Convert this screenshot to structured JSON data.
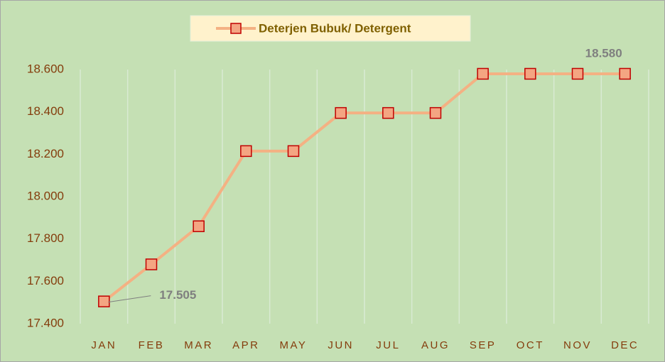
{
  "chart_data": {
    "type": "line",
    "categories": [
      "JAN",
      "FEB",
      "MAR",
      "APR",
      "MAY",
      "JUN",
      "JUL",
      "AUG",
      "SEP",
      "OCT",
      "NOV",
      "DEC"
    ],
    "series": [
      {
        "name": "Deterjen Bubuk/ Detergent",
        "color": "#f4b183",
        "marker_color": "#f4a582",
        "marker_edge": "#c00000",
        "values": [
          17505,
          17680,
          17860,
          18215,
          18215,
          18395,
          18395,
          18395,
          18580,
          18580,
          18580,
          18580
        ],
        "value_labels": [
          "17.505",
          null,
          null,
          null,
          null,
          null,
          null,
          null,
          null,
          null,
          null,
          "18.580"
        ]
      }
    ],
    "ylim": [
      17400,
      18600
    ],
    "yticks": [
      {
        "value": 17400,
        "label": "17.400"
      },
      {
        "value": 17600,
        "label": "17.600"
      },
      {
        "value": 17800,
        "label": "17.800"
      },
      {
        "value": 18000,
        "label": "18.000"
      },
      {
        "value": 18200,
        "label": "18.200"
      },
      {
        "value": 18400,
        "label": "18.400"
      },
      {
        "value": 18600,
        "label": "18.600"
      }
    ],
    "grid": "vertical",
    "legend": "top"
  }
}
